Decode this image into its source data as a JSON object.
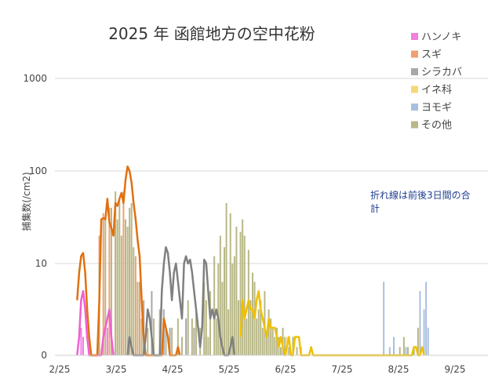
{
  "chart_data": {
    "type": "bar",
    "title": "2025 年 函館地方の空中花粉",
    "ylabel": "捕集数(/cm2)",
    "xlabel": "",
    "y_scale": "log",
    "y_ticks": [
      "0",
      "10",
      "100",
      "1000"
    ],
    "x_ticks": [
      "2/25",
      "3/25",
      "4/25",
      "5/25",
      "6/25",
      "7/25",
      "8/25",
      "9/25"
    ],
    "x_range": [
      "2025-02-25",
      "2025-10-05"
    ],
    "grid": "horizontal",
    "legend_position": "top-right",
    "annotation": "折れ線は前後3日間の合計",
    "series": [
      {
        "name": "ハンノキ",
        "color": "#f080e0",
        "line_color": "#f060d0",
        "bars": [
          [
            "2025-03-10",
            3
          ],
          [
            "2025-03-11",
            2
          ],
          [
            "2025-03-23",
            3
          ]
        ],
        "line": [
          [
            "2025-03-08",
            0
          ],
          [
            "2025-03-09",
            2
          ],
          [
            "2025-03-10",
            6
          ],
          [
            "2025-03-11",
            7
          ],
          [
            "2025-03-12",
            5
          ],
          [
            "2025-03-13",
            2
          ],
          [
            "2025-03-14",
            0
          ],
          [
            "2025-03-20",
            0
          ],
          [
            "2025-03-21",
            2
          ],
          [
            "2025-03-22",
            3
          ],
          [
            "2025-03-23",
            4
          ],
          [
            "2025-03-24",
            5
          ],
          [
            "2025-03-25",
            2
          ],
          [
            "2025-03-26",
            0
          ]
        ]
      },
      {
        "name": "スギ",
        "color": "#f0a070",
        "line_color": "#e07010",
        "bars": [
          [
            "2025-03-19",
            20
          ],
          [
            "2025-03-21",
            35
          ],
          [
            "2025-03-24",
            40
          ],
          [
            "2025-03-27",
            50
          ],
          [
            "2025-03-31",
            60
          ],
          [
            "2025-04-03",
            25
          ],
          [
            "2025-04-06",
            12
          ],
          [
            "2025-04-08",
            8
          ],
          [
            "2025-04-10",
            5
          ]
        ],
        "line": [
          [
            "2025-03-08",
            6
          ],
          [
            "2025-03-09",
            9
          ],
          [
            "2025-03-10",
            12
          ],
          [
            "2025-03-11",
            13
          ],
          [
            "2025-03-12",
            9
          ],
          [
            "2025-03-13",
            5
          ],
          [
            "2025-03-14",
            2
          ],
          [
            "2025-03-15",
            0
          ],
          [
            "2025-03-18",
            0
          ],
          [
            "2025-03-19",
            6
          ],
          [
            "2025-03-20",
            30
          ],
          [
            "2025-03-21",
            31
          ],
          [
            "2025-03-22",
            30
          ],
          [
            "2025-03-23",
            50
          ],
          [
            "2025-03-24",
            28
          ],
          [
            "2025-03-25",
            24
          ],
          [
            "2025-03-26",
            20
          ],
          [
            "2025-03-27",
            45
          ],
          [
            "2025-03-28",
            42
          ],
          [
            "2025-03-29",
            50
          ],
          [
            "2025-03-30",
            58
          ],
          [
            "2025-03-31",
            45
          ],
          [
            "2025-04-01",
            80
          ],
          [
            "2025-04-02",
            112
          ],
          [
            "2025-04-03",
            100
          ],
          [
            "2025-04-04",
            75
          ],
          [
            "2025-04-05",
            45
          ],
          [
            "2025-04-06",
            30
          ],
          [
            "2025-04-07",
            18
          ],
          [
            "2025-04-08",
            12
          ],
          [
            "2025-04-09",
            6
          ],
          [
            "2025-04-10",
            2
          ],
          [
            "2025-04-11",
            0
          ],
          [
            "2025-04-19",
            0
          ],
          [
            "2025-04-20",
            4
          ],
          [
            "2025-04-21",
            3
          ],
          [
            "2025-04-22",
            2
          ],
          [
            "2025-04-23",
            0
          ],
          [
            "2025-04-26",
            0
          ],
          [
            "2025-04-27",
            1
          ],
          [
            "2025-04-28",
            0
          ]
        ]
      },
      {
        "name": "シラカバ",
        "color": "#a8a8a8",
        "line_color": "#808080",
        "bars": [
          [
            "2025-04-10",
            6
          ],
          [
            "2025-04-14",
            7
          ],
          [
            "2025-04-18",
            4
          ],
          [
            "2025-04-20",
            5
          ],
          [
            "2025-04-23",
            3
          ],
          [
            "2025-05-01",
            4
          ],
          [
            "2025-05-05",
            3
          ],
          [
            "2025-05-10",
            2
          ],
          [
            "2025-05-20",
            1
          ]
        ],
        "line": [
          [
            "2025-04-02",
            0
          ],
          [
            "2025-04-03",
            2
          ],
          [
            "2025-04-04",
            1
          ],
          [
            "2025-04-05",
            0
          ],
          [
            "2025-04-10",
            0
          ],
          [
            "2025-04-11",
            2
          ],
          [
            "2025-04-12",
            5
          ],
          [
            "2025-04-13",
            4
          ],
          [
            "2025-04-14",
            2
          ],
          [
            "2025-04-15",
            0
          ],
          [
            "2025-04-18",
            0
          ],
          [
            "2025-04-19",
            7
          ],
          [
            "2025-04-20",
            10
          ],
          [
            "2025-04-21",
            15
          ],
          [
            "2025-04-22",
            13
          ],
          [
            "2025-04-23",
            9
          ],
          [
            "2025-04-24",
            6
          ],
          [
            "2025-04-25",
            9
          ],
          [
            "2025-04-26",
            10
          ],
          [
            "2025-04-27",
            8
          ],
          [
            "2025-04-28",
            6
          ],
          [
            "2025-04-29",
            4
          ],
          [
            "2025-04-30",
            10
          ],
          [
            "2025-05-01",
            12
          ],
          [
            "2025-05-02",
            10
          ],
          [
            "2025-05-03",
            11
          ],
          [
            "2025-05-04",
            9
          ],
          [
            "2025-05-05",
            7
          ],
          [
            "2025-05-06",
            5
          ],
          [
            "2025-05-07",
            3
          ],
          [
            "2025-05-08",
            1
          ],
          [
            "2025-05-09",
            3
          ],
          [
            "2025-05-10",
            11
          ],
          [
            "2025-05-11",
            10
          ],
          [
            "2025-05-12",
            7
          ],
          [
            "2025-05-13",
            4
          ],
          [
            "2025-05-14",
            5
          ],
          [
            "2025-05-15",
            4
          ],
          [
            "2025-05-16",
            5
          ],
          [
            "2025-05-17",
            4
          ],
          [
            "2025-05-18",
            2
          ],
          [
            "2025-05-19",
            1
          ],
          [
            "2025-05-20",
            0
          ],
          [
            "2025-05-22",
            0
          ],
          [
            "2025-05-23",
            1
          ],
          [
            "2025-05-24",
            2
          ],
          [
            "2025-05-25",
            0
          ]
        ]
      },
      {
        "name": "イネ科",
        "color": "#f6d878",
        "line_color": "#f0c000",
        "bars": [
          [
            "2025-06-10",
            1
          ],
          [
            "2025-06-20",
            2
          ]
        ],
        "line": [
          [
            "2025-05-28",
            2
          ],
          [
            "2025-05-29",
            6
          ],
          [
            "2025-05-30",
            4
          ],
          [
            "2025-05-31",
            5
          ],
          [
            "2025-06-01",
            6
          ],
          [
            "2025-06-02",
            5
          ],
          [
            "2025-06-03",
            5
          ],
          [
            "2025-06-04",
            4
          ],
          [
            "2025-06-05",
            6
          ],
          [
            "2025-06-06",
            7
          ],
          [
            "2025-06-07",
            5
          ],
          [
            "2025-06-08",
            4
          ],
          [
            "2025-06-09",
            3
          ],
          [
            "2025-06-10",
            2
          ],
          [
            "2025-06-11",
            4
          ],
          [
            "2025-06-12",
            3
          ],
          [
            "2025-06-13",
            3
          ],
          [
            "2025-06-14",
            3
          ],
          [
            "2025-06-15",
            2
          ],
          [
            "2025-06-16",
            1
          ],
          [
            "2025-06-17",
            2
          ],
          [
            "2025-06-18",
            1
          ],
          [
            "2025-06-19",
            0
          ],
          [
            "2025-06-20",
            1
          ],
          [
            "2025-06-21",
            2
          ],
          [
            "2025-06-22",
            0
          ],
          [
            "2025-06-23",
            0
          ],
          [
            "2025-06-24",
            2
          ],
          [
            "2025-06-25",
            2
          ],
          [
            "2025-06-26",
            2
          ],
          [
            "2025-06-27",
            0
          ],
          [
            "2025-07-01",
            0
          ],
          [
            "2025-07-02",
            1
          ],
          [
            "2025-07-03",
            0
          ],
          [
            "2025-08-21",
            0
          ],
          [
            "2025-08-22",
            1
          ],
          [
            "2025-08-23",
            1
          ],
          [
            "2025-08-24",
            0
          ],
          [
            "2025-08-25",
            0
          ],
          [
            "2025-08-26",
            1
          ],
          [
            "2025-08-27",
            0
          ]
        ]
      },
      {
        "name": "ヨモギ",
        "color": "#a8c0e0",
        "line_color": "#a8c0e0",
        "bars": [
          [
            "2025-08-07",
            8
          ],
          [
            "2025-08-10",
            1
          ],
          [
            "2025-08-12",
            2
          ],
          [
            "2025-08-18",
            1
          ],
          [
            "2025-08-25",
            7
          ],
          [
            "2025-08-27",
            5
          ],
          [
            "2025-08-28",
            8
          ],
          [
            "2025-08-29",
            3
          ]
        ],
        "line": []
      },
      {
        "name": "その他",
        "color": "#b8b888",
        "line_color": "#b8b888",
        "bars": [
          [
            "2025-03-19",
            10
          ],
          [
            "2025-03-22",
            30
          ],
          [
            "2025-03-25",
            40
          ],
          [
            "2025-03-27",
            60
          ],
          [
            "2025-03-28",
            30
          ],
          [
            "2025-03-29",
            50
          ],
          [
            "2025-03-30",
            20
          ],
          [
            "2025-04-01",
            30
          ],
          [
            "2025-04-02",
            25
          ],
          [
            "2025-04-03",
            40
          ],
          [
            "2025-04-04",
            45
          ],
          [
            "2025-04-05",
            15
          ],
          [
            "2025-04-07",
            8
          ],
          [
            "2025-04-09",
            4
          ],
          [
            "2025-04-12",
            3
          ],
          [
            "2025-04-15",
            4
          ],
          [
            "2025-04-18",
            5
          ],
          [
            "2025-04-21",
            3
          ],
          [
            "2025-04-24",
            3
          ],
          [
            "2025-04-27",
            4
          ],
          [
            "2025-04-29",
            2
          ],
          [
            "2025-05-02",
            6
          ],
          [
            "2025-05-04",
            4
          ],
          [
            "2025-05-06",
            5
          ],
          [
            "2025-05-08",
            3
          ],
          [
            "2025-05-10",
            8
          ],
          [
            "2025-05-11",
            6
          ],
          [
            "2025-05-12",
            2
          ],
          [
            "2025-05-13",
            7
          ],
          [
            "2025-05-15",
            12
          ],
          [
            "2025-05-16",
            4
          ],
          [
            "2025-05-17",
            10
          ],
          [
            "2025-05-18",
            20
          ],
          [
            "2025-05-19",
            8
          ],
          [
            "2025-05-20",
            15
          ],
          [
            "2025-05-21",
            45
          ],
          [
            "2025-05-22",
            5
          ],
          [
            "2025-05-23",
            35
          ],
          [
            "2025-05-24",
            10
          ],
          [
            "2025-05-25",
            12
          ],
          [
            "2025-05-26",
            25
          ],
          [
            "2025-05-27",
            6
          ],
          [
            "2025-05-28",
            22
          ],
          [
            "2025-05-29",
            30
          ],
          [
            "2025-05-30",
            20
          ],
          [
            "2025-05-31",
            4
          ],
          [
            "2025-06-01",
            14
          ],
          [
            "2025-06-02",
            6
          ],
          [
            "2025-06-03",
            9
          ],
          [
            "2025-06-04",
            8
          ],
          [
            "2025-06-05",
            4
          ],
          [
            "2025-06-06",
            5
          ],
          [
            "2025-06-07",
            6
          ],
          [
            "2025-06-08",
            3
          ],
          [
            "2025-06-09",
            7
          ],
          [
            "2025-06-10",
            2
          ],
          [
            "2025-06-11",
            5
          ],
          [
            "2025-06-12",
            4
          ],
          [
            "2025-06-13",
            3
          ],
          [
            "2025-06-14",
            2
          ],
          [
            "2025-06-15",
            3
          ],
          [
            "2025-06-16",
            2
          ],
          [
            "2025-06-17",
            1
          ],
          [
            "2025-06-18",
            3
          ],
          [
            "2025-06-19",
            2
          ],
          [
            "2025-06-21",
            1
          ],
          [
            "2025-06-23",
            2
          ],
          [
            "2025-06-25",
            1
          ],
          [
            "2025-06-27",
            1
          ],
          [
            "2025-08-15",
            1
          ],
          [
            "2025-08-17",
            2
          ],
          [
            "2025-08-19",
            1
          ],
          [
            "2025-08-22",
            1
          ],
          [
            "2025-08-24",
            3
          ]
        ],
        "line": []
      }
    ]
  }
}
